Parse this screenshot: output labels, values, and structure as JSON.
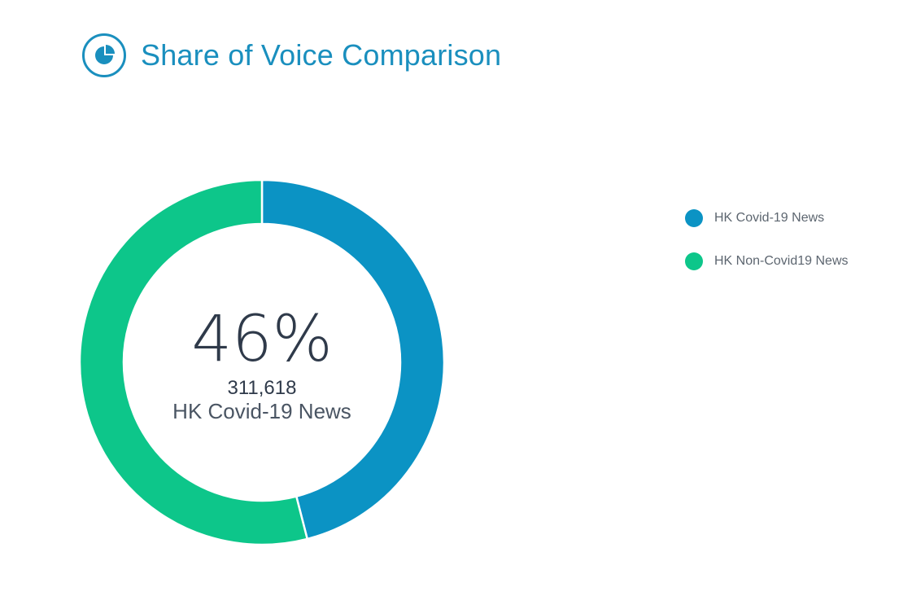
{
  "header": {
    "title": "Share of Voice Comparison",
    "icon": "pie-chart-icon",
    "accent_color": "#1a8fbe"
  },
  "chart_data": {
    "type": "pie",
    "title": "Share of Voice Comparison",
    "donut": true,
    "slices": [
      {
        "name": "HK Covid-19 News",
        "percent": 46,
        "color": "#0b93c4"
      },
      {
        "name": "HK Non-Covid19 News",
        "percent": 54,
        "color": "#0dc68a"
      }
    ],
    "center": {
      "percent_text": "46%",
      "count_text": "311,618",
      "label": "HK Covid-19 News"
    },
    "legend_position": "right"
  },
  "legend": {
    "items": [
      {
        "label": "HK Covid-19 News",
        "color": "#0b93c4"
      },
      {
        "label": "HK Non-Covid19 News",
        "color": "#0dc68a"
      }
    ]
  }
}
